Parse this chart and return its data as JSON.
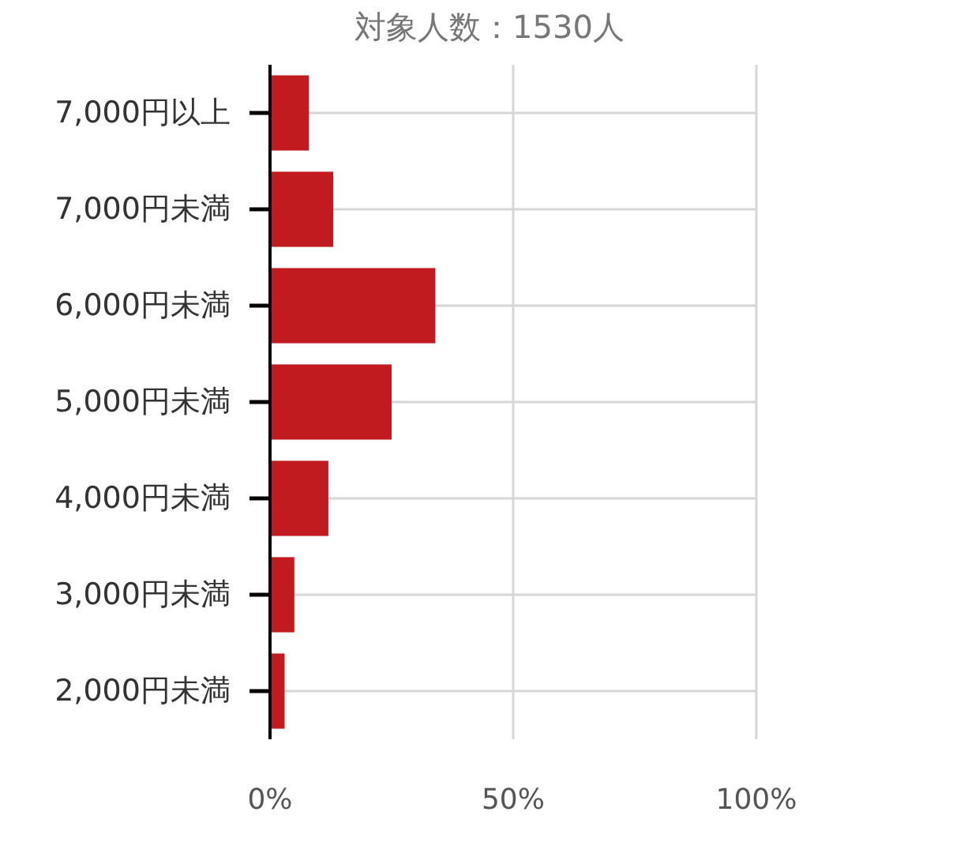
{
  "chart_data": {
    "type": "bar",
    "orientation": "horizontal",
    "title": "対象人数：1530人",
    "categories": [
      "7,000円以上",
      "7,000円未満",
      "6,000円未満",
      "5,000円未満",
      "4,000円未満",
      "3,000円未満",
      "2,000円未満"
    ],
    "values": [
      8,
      13,
      34,
      25,
      12,
      5,
      3
    ],
    "color": "#c11b1f",
    "xlim": [
      0,
      100
    ],
    "xticks": [
      {
        "value": 0,
        "label": "0%"
      },
      {
        "value": 50,
        "label": "50%"
      },
      {
        "value": 100,
        "label": "100%"
      }
    ],
    "grid": true
  }
}
